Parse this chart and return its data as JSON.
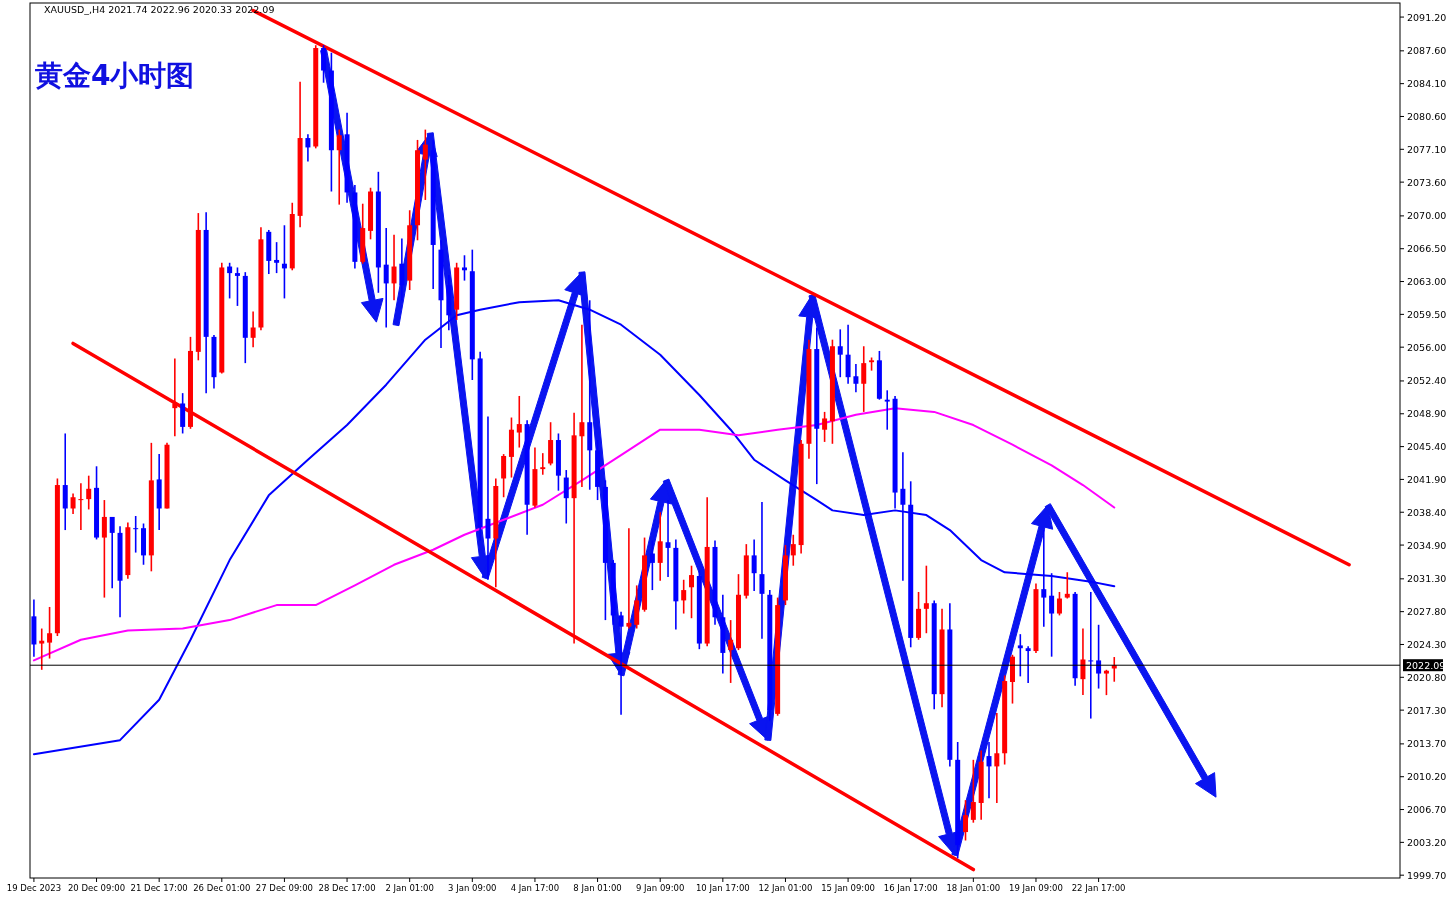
{
  "chart_data": {
    "type": "candlestick",
    "title": "黄金4小时图",
    "annotations": [
      "XAUUSD_,H4  2021.74 2022.96 2020.33 2022.09"
    ],
    "categories": [
      "19 Dec 2023",
      null,
      null,
      null,
      null,
      null,
      null,
      null,
      "20 Dec 09:00",
      null,
      null,
      null,
      null,
      null,
      null,
      null,
      "21 Dec 17:00",
      null,
      null,
      null,
      null,
      null,
      null,
      null,
      "26 Dec 01:00",
      null,
      null,
      null,
      null,
      null,
      null,
      null,
      "27 Dec 09:00",
      null,
      null,
      null,
      null,
      null,
      null,
      null,
      "28 Dec 17:00",
      null,
      null,
      null,
      null,
      null,
      null,
      null,
      "2 Jan 01:00",
      null,
      null,
      null,
      null,
      null,
      null,
      null,
      "3 Jan 09:00",
      null,
      null,
      null,
      null,
      null,
      null,
      null,
      "4 Jan 17:00",
      null,
      null,
      null,
      null,
      null,
      null,
      null,
      "8 Jan 01:00",
      null,
      null,
      null,
      null,
      null,
      null,
      null,
      "9 Jan 09:00",
      null,
      null,
      null,
      null,
      null,
      null,
      null,
      "10 Jan 17:00",
      null,
      null,
      null,
      null,
      null,
      null,
      null,
      "12 Jan 01:00",
      null,
      null,
      null,
      null,
      null,
      null,
      null,
      "15 Jan 09:00",
      null,
      null,
      null,
      null,
      null,
      null,
      null,
      "16 Jan 17:00",
      null,
      null,
      null,
      null,
      null,
      null,
      null,
      "18 Jan 01:00",
      null,
      null,
      null,
      null,
      null,
      null,
      null,
      "19 Jan 09:00",
      null,
      null,
      null,
      null,
      null,
      null,
      null,
      "22 Jan 17:00",
      null,
      null,
      null,
      null,
      null,
      null,
      null,
      null,
      null,
      null,
      null,
      null,
      null,
      null,
      null,
      null,
      null,
      null,
      null,
      null,
      null,
      null,
      null,
      null,
      null,
      null,
      null,
      null,
      null,
      null,
      null,
      null,
      null,
      null,
      null,
      null,
      null,
      null
    ],
    "colors": [
      "#0000ff",
      "#ff0000",
      "#ff0000",
      "#ff0000",
      "#0000ff",
      "#ff0000",
      "#ff0000",
      "#ff0000",
      "#0000ff",
      "#ff0000",
      "#0000ff",
      "#0000ff",
      "#ff0000",
      "#0000ff",
      "#0000ff",
      "#ff0000",
      "#0000ff",
      "#ff0000",
      "#ff0000",
      "#0000ff",
      "#ff0000",
      "#ff0000",
      "#0000ff",
      "#0000ff",
      "#ff0000",
      "#0000ff",
      "#0000ff",
      "#0000ff",
      "#ff0000",
      "#ff0000",
      "#0000ff",
      "#0000ff",
      "#0000ff",
      "#ff0000",
      "#ff0000",
      "#0000ff",
      "#ff0000",
      "#0000ff",
      "#0000ff",
      "#ff0000",
      "#0000ff",
      "#0000ff",
      "#ff0000",
      "#ff0000",
      "#0000ff",
      "#0000ff",
      "#ff0000",
      "#0000ff",
      "#ff0000",
      "#ff0000",
      "#ff0000",
      "#0000ff",
      "#0000ff",
      "#0000ff",
      "#ff0000",
      "#0000ff",
      "#0000ff",
      "#0000ff",
      "#0000ff",
      "#ff0000",
      "#ff0000",
      "#ff0000",
      "#ff0000",
      "#0000ff",
      "#ff0000",
      "#ff0000",
      "#ff0000",
      "#0000ff",
      "#0000ff",
      "#ff0000",
      "#ff0000",
      "#0000ff",
      "#0000ff",
      "#0000ff",
      "#0000ff",
      "#0000ff",
      "#ff0000",
      "#ff0000",
      "#ff0000",
      "#0000ff",
      "#ff0000",
      "#0000ff",
      "#0000ff",
      "#ff0000",
      "#ff0000",
      "#0000ff",
      "#ff0000",
      "#0000ff",
      "#0000ff",
      "#ff0000",
      "#ff0000",
      "#ff0000",
      "#0000ff",
      "#0000ff",
      "#0000ff",
      "#ff0000",
      "#ff0000",
      "#ff0000",
      "#ff0000",
      "#ff0000",
      "#0000ff",
      "#ff0000",
      "#ff0000",
      "#0000ff",
      "#0000ff",
      "#0000ff",
      "#ff0000",
      "#ff0000",
      "#0000ff",
      "#0000ff",
      "#0000ff",
      "#0000ff",
      "#0000ff",
      "#ff0000",
      "#ff0000",
      "#0000ff",
      "#ff0000",
      "#0000ff",
      "#0000ff",
      "#ff0000",
      "#ff0000",
      "#ff0000",
      "#0000ff",
      "#ff0000",
      "#ff0000",
      "#ff0000",
      "#0000ff",
      "#0000ff",
      "#ff0000",
      "#0000ff",
      "#0000ff",
      "#ff0000",
      "#ff0000",
      "#0000ff",
      "#ff0000",
      "#0000ff",
      "#0000ff",
      "#ff0000",
      "#ff0000",
      null,
      null,
      null,
      null,
      null,
      null,
      null,
      null,
      null,
      null,
      null,
      null,
      null,
      null,
      null,
      null,
      null,
      null,
      null,
      null,
      null,
      null,
      null,
      null,
      null,
      null,
      null,
      null,
      null,
      null,
      null,
      null,
      null,
      null,
      null,
      null
    ],
    "ohlc": [
      [
        2027.3,
        2029.1,
        2023.0,
        2024.3
      ],
      [
        2024.4,
        2026.0,
        2021.6,
        2024.7
      ],
      [
        2024.5,
        2028.3,
        2022.8,
        2025.5
      ],
      [
        2025.5,
        2042.0,
        2025.2,
        2041.3
      ],
      [
        2041.3,
        2046.8,
        2036.5,
        2038.8
      ],
      [
        2038.8,
        2040.4,
        2038.2,
        2040.0
      ],
      [
        2039.7,
        2041.5,
        2036.5,
        2039.8
      ],
      [
        2039.8,
        2042.3,
        2038.7,
        2040.9
      ],
      [
        2041.0,
        2043.3,
        2035.5,
        2035.7
      ],
      [
        2035.7,
        2039.7,
        2029.3,
        2037.9
      ],
      [
        2037.9,
        2037.9,
        2030.3,
        2036.2
      ],
      [
        2036.2,
        2036.9,
        2027.2,
        2031.1
      ],
      [
        2031.7,
        2037.3,
        2031.3,
        2036.8
      ],
      [
        2036.7,
        2038.0,
        2034.1,
        2036.6
      ],
      [
        2036.7,
        2037.2,
        2032.8,
        2033.8
      ],
      [
        2033.8,
        2045.8,
        2032.1,
        2041.8
      ],
      [
        2041.9,
        2044.6,
        2036.5,
        2038.8
      ],
      [
        2038.8,
        2045.8,
        2038.8,
        2045.6
      ],
      [
        2049.5,
        2054.8,
        2046.5,
        2050.0
      ],
      [
        2050.0,
        2051.1,
        2046.8,
        2047.5
      ],
      [
        2047.5,
        2057.1,
        2047.3,
        2055.6
      ],
      [
        2055.5,
        2070.3,
        2054.6,
        2068.5
      ],
      [
        2068.5,
        2070.4,
        2051.1,
        2057.1
      ],
      [
        2057.1,
        2057.3,
        2051.6,
        2052.8
      ],
      [
        2053.3,
        2065.0,
        2053.2,
        2064.5
      ],
      [
        2064.6,
        2065.0,
        2061.2,
        2063.9
      ],
      [
        2063.9,
        2064.5,
        2060.4,
        2063.6
      ],
      [
        2063.6,
        2064.0,
        2054.3,
        2057.0
      ],
      [
        2057.0,
        2059.8,
        2056.0,
        2058.1
      ],
      [
        2058.1,
        2068.8,
        2057.8,
        2067.5
      ],
      [
        2068.3,
        2068.5,
        2063.8,
        2065.2
      ],
      [
        2065.3,
        2067.2,
        2063.9,
        2065.0
      ],
      [
        2064.9,
        2069.0,
        2061.2,
        2064.4
      ],
      [
        2064.4,
        2071.4,
        2064.2,
        2070.2
      ],
      [
        2070.0,
        2084.3,
        2068.8,
        2078.3
      ],
      [
        2078.3,
        2078.7,
        2075.8,
        2077.3
      ],
      [
        2077.4,
        2088.2,
        2077.2,
        2087.9
      ],
      [
        2087.9,
        2088.2,
        2084.2,
        2085.5
      ],
      [
        2085.5,
        2087.4,
        2072.6,
        2077.0
      ],
      [
        2077.0,
        2079.2,
        2071.2,
        2078.6
      ],
      [
        2078.7,
        2081.0,
        2071.4,
        2072.5
      ],
      [
        2072.5,
        2073.3,
        2064.4,
        2065.1
      ],
      [
        2065.1,
        2071.3,
        2064.9,
        2068.7
      ],
      [
        2068.4,
        2073.0,
        2067.5,
        2072.6
      ],
      [
        2072.6,
        2074.7,
        2061.8,
        2064.5
      ],
      [
        2064.8,
        2068.7,
        2058.1,
        2062.8
      ],
      [
        2062.8,
        2068.0,
        2061.0,
        2064.6
      ],
      [
        2064.9,
        2067.6,
        2061.0,
        2062.6
      ],
      [
        2063.1,
        2070.6,
        2062.1,
        2069.0
      ],
      [
        2069.0,
        2078.1,
        2067.4,
        2077.0
      ],
      [
        2076.0,
        2079.2,
        2071.7,
        2077.6
      ],
      [
        2077.0,
        2078.1,
        2062.2,
        2066.9
      ],
      [
        2066.4,
        2067.4,
        2055.9,
        2061.0
      ],
      [
        2062.6,
        2063.7,
        2057.8,
        2059.4
      ],
      [
        2060.0,
        2065.0,
        2058.9,
        2064.5
      ],
      [
        2064.5,
        2065.8,
        2063.1,
        2064.2
      ],
      [
        2064.1,
        2066.4,
        2052.5,
        2054.7
      ],
      [
        2054.8,
        2055.5,
        2035.4,
        2036.8
      ],
      [
        2037.7,
        2048.6,
        2031.2,
        2035.6
      ],
      [
        2035.6,
        2042.0,
        2030.4,
        2041.2
      ],
      [
        2042.0,
        2044.6,
        2040.0,
        2044.4
      ],
      [
        2044.3,
        2048.5,
        2042.1,
        2047.2
      ],
      [
        2046.9,
        2050.8,
        2045.3,
        2047.8
      ],
      [
        2047.8,
        2048.2,
        2036.0,
        2039.2
      ],
      [
        2039.1,
        2045.3,
        2038.9,
        2043.0
      ],
      [
        2043.0,
        2044.7,
        2042.4,
        2043.2
      ],
      [
        2043.6,
        2048.0,
        2043.4,
        2046.1
      ],
      [
        2046.1,
        2046.8,
        2040.7,
        2042.3
      ],
      [
        2042.1,
        2042.9,
        2037.2,
        2039.9
      ],
      [
        2039.9,
        2049.0,
        2024.4,
        2046.6
      ],
      [
        2046.5,
        2058.4,
        2041.1,
        2048.0
      ],
      [
        2048.0,
        2061.0,
        2040.8,
        2045.0
      ],
      [
        2045.0,
        2046.1,
        2039.7,
        2041.1
      ],
      [
        2041.1,
        2041.8,
        2026.9,
        2033.0
      ],
      [
        2033.0,
        2033.3,
        2026.4,
        2027.4
      ],
      [
        2027.4,
        2027.8,
        2016.8,
        2026.2
      ],
      [
        2026.2,
        2036.7,
        2026.0,
        2026.6
      ],
      [
        2026.4,
        2030.6,
        2026.0,
        2029.0
      ],
      [
        2028.0,
        2035.7,
        2027.8,
        2033.8
      ],
      [
        2034.0,
        2035.4,
        2030.1,
        2033.0
      ],
      [
        2033.0,
        2038.4,
        2031.1,
        2035.3
      ],
      [
        2035.2,
        2039.7,
        2031.5,
        2034.6
      ],
      [
        2034.6,
        2035.5,
        2025.9,
        2028.9
      ],
      [
        2029.0,
        2031.2,
        2027.6,
        2030.1
      ],
      [
        2030.4,
        2032.7,
        2027.1,
        2031.7
      ],
      [
        2031.6,
        2032.2,
        2023.8,
        2024.4
      ],
      [
        2024.4,
        2040.0,
        2024.1,
        2034.7
      ],
      [
        2034.7,
        2035.4,
        2026.4,
        2027.2
      ],
      [
        2027.2,
        2029.6,
        2021.2,
        2023.4
      ],
      [
        2023.7,
        2026.9,
        2020.2,
        2024.8
      ],
      [
        2023.9,
        2031.8,
        2023.7,
        2029.6
      ],
      [
        2029.5,
        2035.0,
        2029.2,
        2033.8
      ],
      [
        2033.8,
        2035.5,
        2030.0,
        2031.9
      ],
      [
        2031.8,
        2039.5,
        2024.9,
        2029.7
      ],
      [
        2029.6,
        2030.1,
        2016.2,
        2017.3
      ],
      [
        2016.9,
        2029.3,
        2016.7,
        2028.5
      ],
      [
        2029.0,
        2034.9,
        2028.5,
        2033.8
      ],
      [
        2033.8,
        2036.0,
        2032.7,
        2035.0
      ],
      [
        2034.9,
        2046.1,
        2034.0,
        2045.7
      ],
      [
        2045.7,
        2056.8,
        2044.1,
        2055.8
      ],
      [
        2055.8,
        2058.1,
        2041.4,
        2047.3
      ],
      [
        2047.2,
        2049.1,
        2045.9,
        2048.4
      ],
      [
        2048.1,
        2056.8,
        2045.7,
        2056.1
      ],
      [
        2056.1,
        2057.9,
        2052.8,
        2055.2
      ],
      [
        2055.2,
        2058.4,
        2052.1,
        2052.8
      ],
      [
        2052.9,
        2054.2,
        2051.2,
        2052.1
      ],
      [
        2052.1,
        2056.1,
        2049.1,
        2054.3
      ],
      [
        2054.4,
        2054.9,
        2053.5,
        2054.6
      ],
      [
        2054.6,
        2055.6,
        2050.4,
        2050.5
      ],
      [
        2050.4,
        2051.4,
        2047.2,
        2050.2
      ],
      [
        2050.5,
        2050.8,
        2038.8,
        2040.5
      ],
      [
        2040.9,
        2044.8,
        2031.1,
        2039.2
      ],
      [
        2039.2,
        2041.7,
        2024.0,
        2025.0
      ],
      [
        2025.0,
        2029.9,
        2024.8,
        2028.1
      ],
      [
        2028.1,
        2032.7,
        2025.5,
        2028.7
      ],
      [
        2028.7,
        2029.0,
        2017.4,
        2019.0
      ],
      [
        2019.0,
        2028.1,
        2017.6,
        2025.9
      ],
      [
        2025.9,
        2028.7,
        2011.3,
        2012.0
      ],
      [
        2012.0,
        2013.9,
        2001.5,
        2002.9
      ],
      [
        2004.3,
        2007.7,
        2003.4,
        2006.1
      ],
      [
        2005.6,
        2012.0,
        2005.3,
        2007.5
      ],
      [
        2007.4,
        2013.0,
        2005.6,
        2011.8
      ],
      [
        2012.4,
        2013.9,
        2007.9,
        2011.3
      ],
      [
        2011.3,
        2017.0,
        2007.4,
        2012.7
      ],
      [
        2012.7,
        2021.0,
        2011.5,
        2020.4
      ],
      [
        2020.3,
        2023.2,
        2018.0,
        2023.0
      ],
      [
        2024.2,
        2025.4,
        2020.9,
        2023.9
      ],
      [
        2023.9,
        2024.1,
        2020.2,
        2023.6
      ],
      [
        2023.6,
        2030.8,
        2023.4,
        2030.2
      ],
      [
        2030.2,
        2036.5,
        2026.2,
        2029.3
      ],
      [
        2029.5,
        2031.9,
        2023.0,
        2027.6
      ],
      [
        2027.6,
        2029.9,
        2027.4,
        2029.2
      ],
      [
        2029.3,
        2032.0,
        2029.2,
        2029.7
      ],
      [
        2029.7,
        2029.9,
        2019.9,
        2020.7
      ],
      [
        2020.6,
        2026.0,
        2018.9,
        2022.7
      ],
      [
        2022.6,
        2029.9,
        2016.4,
        2022.5
      ],
      [
        2022.6,
        2026.4,
        2019.6,
        2021.2
      ],
      [
        2021.2,
        2021.6,
        2018.9,
        2021.5
      ],
      [
        2021.74,
        2022.96,
        2020.33,
        2022.09
      ],
      null,
      null,
      null,
      null,
      null,
      null,
      null,
      null,
      null,
      null,
      null,
      null,
      null,
      null,
      null,
      null,
      null,
      null,
      null,
      null,
      null,
      null,
      null,
      null,
      null,
      null,
      null,
      null,
      null,
      null,
      null,
      null,
      null,
      null,
      null,
      null
    ],
    "series": [
      {
        "type": "line",
        "color": "#0000ff",
        "values": [
          2012.6,
          null,
          null,
          null,
          null,
          null,
          null,
          null,
          null,
          null,
          null,
          2014.1,
          null,
          null,
          null,
          null,
          2018.4,
          null,
          null,
          null,
          2024.8,
          null,
          null,
          null,
          null,
          2033.3,
          null,
          null,
          null,
          null,
          2040.2,
          null,
          null,
          null,
          null,
          2044.0,
          null,
          null,
          null,
          null,
          2047.7,
          null,
          null,
          null,
          null,
          2052.0,
          null,
          null,
          null,
          null,
          2056.8,
          null,
          null,
          null,
          2059.4,
          null,
          null,
          2060.0,
          null,
          null,
          null,
          null,
          2060.8,
          null,
          null,
          null,
          null,
          2061.0,
          null,
          null,
          null,
          2060.0,
          null,
          null,
          null,
          2058.4,
          null,
          null,
          null,
          null,
          2055.2,
          null,
          null,
          null,
          null,
          2050.9,
          null,
          null,
          null,
          2047.2,
          null,
          null,
          2044.0,
          null,
          null,
          null,
          2041.8,
          null,
          null,
          null,
          2039.7,
          null,
          2038.6,
          null,
          null,
          null,
          2038.1,
          null,
          null,
          null,
          2038.6,
          null,
          null,
          null,
          2038.1,
          null,
          null,
          2036.5,
          null,
          null,
          null,
          2033.3,
          null,
          null,
          2032.0,
          null,
          null,
          null,
          null,
          null,
          2031.6,
          null,
          null,
          null,
          null,
          2031.0,
          null,
          null,
          2030.5,
          null,
          null,
          null,
          null,
          null,
          null,
          null,
          null,
          null,
          null,
          null,
          null,
          null,
          null,
          null,
          null,
          null,
          null,
          null,
          null,
          null,
          null,
          null,
          null,
          null,
          null,
          null,
          null,
          null,
          null,
          null,
          null,
          null,
          null,
          null,
          null
        ]
      },
      {
        "type": "line",
        "color": "#ff00ff",
        "values": [
          2022.6,
          null,
          null,
          null,
          null,
          null,
          2024.8,
          null,
          null,
          null,
          null,
          null,
          2025.8,
          null,
          null,
          null,
          null,
          null,
          null,
          2026.0,
          null,
          null,
          null,
          null,
          null,
          2026.9,
          null,
          null,
          null,
          null,
          null,
          2028.5,
          null,
          null,
          null,
          null,
          2028.5,
          null,
          null,
          null,
          null,
          2030.6,
          null,
          null,
          null,
          null,
          2032.8,
          null,
          null,
          null,
          null,
          2034.4,
          null,
          null,
          null,
          2036.0,
          null,
          null,
          null,
          null,
          2037.6,
          null,
          null,
          null,
          null,
          2039.2,
          null,
          null,
          null,
          null,
          2041.8,
          null,
          null,
          null,
          null,
          2044.5,
          null,
          null,
          null,
          null,
          2047.2,
          null,
          null,
          null,
          null,
          2047.2,
          null,
          null,
          null,
          null,
          2046.6,
          null,
          null,
          null,
          null,
          2047.2,
          null,
          null,
          null,
          null,
          2047.7,
          null,
          null,
          null,
          null,
          2048.8,
          null,
          null,
          null,
          null,
          2049.5,
          null,
          null,
          null,
          null,
          2049.1,
          null,
          null,
          null,
          null,
          2047.7,
          null,
          null,
          null,
          null,
          2045.6,
          null,
          null,
          null,
          null,
          2043.4,
          null,
          null,
          null,
          2041.3,
          null,
          null,
          null,
          2038.9,
          null,
          null,
          null,
          null,
          null,
          null,
          null,
          null,
          null,
          null,
          null,
          null,
          null,
          null,
          null,
          null,
          null,
          null,
          null,
          null,
          null,
          null,
          null,
          null,
          null,
          null,
          null,
          null,
          null,
          null,
          null,
          null,
          null,
          null,
          null,
          null
        ]
      },
      {
        "type": "line",
        "color": "#ff0000",
        "values": [
          null,
          null,
          null,
          null,
          null,
          null,
          null,
          null,
          null,
          null,
          null,
          null,
          null,
          null,
          null,
          null,
          null,
          null,
          null,
          null,
          null,
          null,
          null,
          null,
          null,
          null,
          null,
          null,
          2091.9,
          null,
          null,
          null,
          null,
          null,
          null,
          null,
          null,
          null,
          null,
          null,
          null,
          null,
          null,
          null,
          null,
          null,
          null,
          null,
          null,
          null,
          null,
          null,
          null,
          null,
          null,
          null,
          null,
          null,
          null,
          null,
          null,
          null,
          null,
          null,
          null,
          null,
          null,
          null,
          null,
          null,
          null,
          null,
          null,
          null,
          null,
          null,
          null,
          null,
          null,
          null,
          null,
          null,
          null,
          null,
          null,
          null,
          null,
          null,
          null,
          null,
          null,
          null,
          null,
          null,
          null,
          null,
          null,
          null,
          null,
          null,
          null,
          null,
          null,
          null,
          null,
          null,
          null,
          null,
          null,
          null,
          null,
          null,
          null,
          null,
          null,
          null,
          null,
          null,
          null,
          null,
          null,
          null,
          null,
          null,
          null,
          null,
          null,
          null,
          null,
          null,
          null,
          null,
          null,
          null,
          null,
          null,
          null,
          null,
          null,
          null,
          null,
          null,
          null,
          null,
          null,
          null,
          null,
          null,
          null,
          null,
          null,
          null,
          null,
          null,
          null,
          null,
          null,
          null,
          null,
          null,
          null,
          null,
          null,
          null,
          null,
          null,
          null,
          null,
          2032.8,
          null,
          null,
          null,
          null,
          null,
          null
        ]
      },
      {
        "type": "line",
        "color": "#ff0000",
        "values": [
          null,
          null,
          null,
          null,
          null,
          2056.4,
          null,
          null,
          null,
          null,
          null,
          null,
          null,
          null,
          null,
          null,
          null,
          null,
          null,
          null,
          null,
          null,
          null,
          null,
          null,
          null,
          null,
          null,
          null,
          null,
          null,
          null,
          null,
          null,
          null,
          null,
          null,
          null,
          null,
          null,
          null,
          null,
          null,
          null,
          null,
          null,
          null,
          null,
          null,
          null,
          null,
          null,
          null,
          null,
          null,
          null,
          null,
          null,
          null,
          null,
          null,
          null,
          null,
          null,
          null,
          null,
          null,
          null,
          null,
          null,
          null,
          null,
          null,
          null,
          null,
          null,
          null,
          null,
          null,
          null,
          null,
          null,
          null,
          null,
          null,
          null,
          null,
          null,
          null,
          null,
          null,
          null,
          null,
          null,
          null,
          null,
          null,
          null,
          null,
          null,
          null,
          null,
          null,
          null,
          null,
          null,
          null,
          null,
          null,
          null,
          null,
          null,
          null,
          null,
          null,
          null,
          null,
          null,
          null,
          null,
          2000.3,
          null,
          null,
          null,
          null,
          null,
          null,
          null,
          null,
          null,
          null,
          null,
          null,
          null,
          null,
          null,
          null,
          null,
          null,
          null,
          null,
          null,
          null,
          null,
          null,
          null,
          null,
          null,
          null,
          null,
          null,
          null,
          null,
          null,
          null,
          null,
          null,
          null,
          null,
          null,
          null,
          null,
          null,
          null,
          null,
          null,
          null,
          null,
          null,
          null,
          null,
          null,
          null,
          null,
          null
        ]
      }
    ],
    "ylim": [
      1999.4,
      2092.7
    ],
    "yticks": [
      {
        "value": 1999.7,
        "label": "1999.70"
      },
      {
        "value": 2003.2,
        "label": "2003.20"
      },
      {
        "value": 2006.7,
        "label": "2006.70"
      },
      {
        "value": 2010.2,
        "label": "2010.20"
      },
      {
        "value": 2013.7,
        "label": "2013.70"
      },
      {
        "value": 2017.3,
        "label": "2017.30"
      },
      {
        "value": 2020.8,
        "label": "2020.80"
      },
      {
        "value": 2024.3,
        "label": "2024.30"
      },
      {
        "value": 2027.8,
        "label": "2027.80"
      },
      {
        "value": 2031.3,
        "label": "2031.30"
      },
      {
        "value": 2034.9,
        "label": "2034.90"
      },
      {
        "value": 2038.4,
        "label": "2038.40"
      },
      {
        "value": 2041.9,
        "label": "2041.90"
      },
      {
        "value": 2045.4,
        "label": "2045.40"
      },
      {
        "value": 2048.9,
        "label": "2048.90"
      },
      {
        "value": 2052.4,
        "label": "2052.40"
      },
      {
        "value": 2056.0,
        "label": "2056.00"
      },
      {
        "value": 2059.5,
        "label": "2059.50"
      },
      {
        "value": 2063.0,
        "label": "2063.00"
      },
      {
        "value": 2066.5,
        "label": "2066.50"
      },
      {
        "value": 2070.0,
        "label": "2070.00"
      },
      {
        "value": 2073.6,
        "label": "2073.60"
      },
      {
        "value": 2077.1,
        "label": "2077.10"
      },
      {
        "value": 2080.6,
        "label": "2080.60"
      },
      {
        "value": 2084.1,
        "label": "2084.10"
      },
      {
        "value": 2087.6,
        "label": "2087.60"
      },
      {
        "value": 2091.2,
        "label": "2091.20"
      }
    ],
    "ref_lines": [
      {
        "axis": "y",
        "value": 2022.09,
        "label": "2022.09",
        "color": "#000000"
      }
    ]
  }
}
